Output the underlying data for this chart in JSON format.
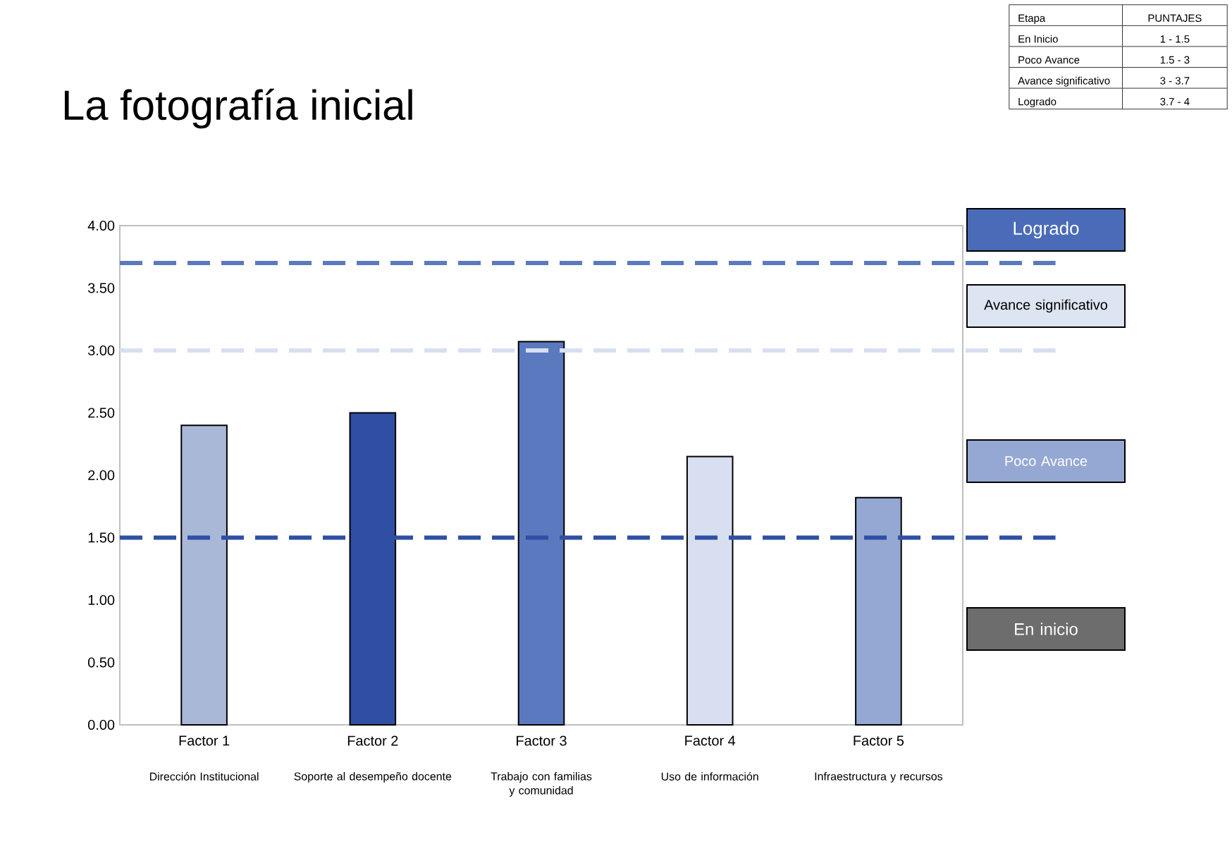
{
  "chart_data": {
    "type": "bar",
    "title": "La fotografía inicial",
    "categories": [
      "Factor 1",
      "Factor 2",
      "Factor 3",
      "Factor 4",
      "Factor 5"
    ],
    "values": [
      2.4,
      2.5,
      3.07,
      2.15,
      1.82
    ],
    "colors": [
      "#aab8d8",
      "#2e4fa3",
      "#5a79bf",
      "#d8dff0",
      "#95a8d4"
    ],
    "ylim": [
      0,
      4
    ],
    "yticks": [
      {
        "value": 0,
        "label": "0.00"
      },
      {
        "value": 0.5,
        "label": "0.50"
      },
      {
        "value": 1,
        "label": "1.00"
      },
      {
        "value": 1.5,
        "label": "1.50"
      },
      {
        "value": 2,
        "label": "2.00"
      },
      {
        "value": 2.5,
        "label": "2.50"
      },
      {
        "value": 3,
        "label": "3.00"
      },
      {
        "value": 3.5,
        "label": "3.50"
      },
      {
        "value": 4,
        "label": "4.00"
      }
    ],
    "ref_lines": [
      {
        "axis": "y",
        "value": 3.7,
        "color": "#5a79bf",
        "line_style": "dashed"
      },
      {
        "axis": "y",
        "value": 3.0,
        "color": "#d8dff0",
        "line_style": "dashed"
      },
      {
        "axis": "y",
        "value": 1.5,
        "color": "#2e4fa3",
        "line_style": "dashed"
      }
    ],
    "annotations": [
      "Dirección Institucional",
      "Soporte al desempeño docente",
      "Trabajo con familias y comunidad",
      "Uso de información",
      "Infraestructura y recursos",
      "Etapa",
      "PUNTAJES",
      "En Inicio",
      "1 - 1.5",
      "Poco Avance",
      "1.5 - 3",
      "Avance significativo",
      "3 - 3.7",
      "Logrado",
      "3.7 - 4",
      "Logrado",
      "Avance significativo",
      "Poco Avance",
      "En inicio"
    ],
    "grid": false
  }
}
